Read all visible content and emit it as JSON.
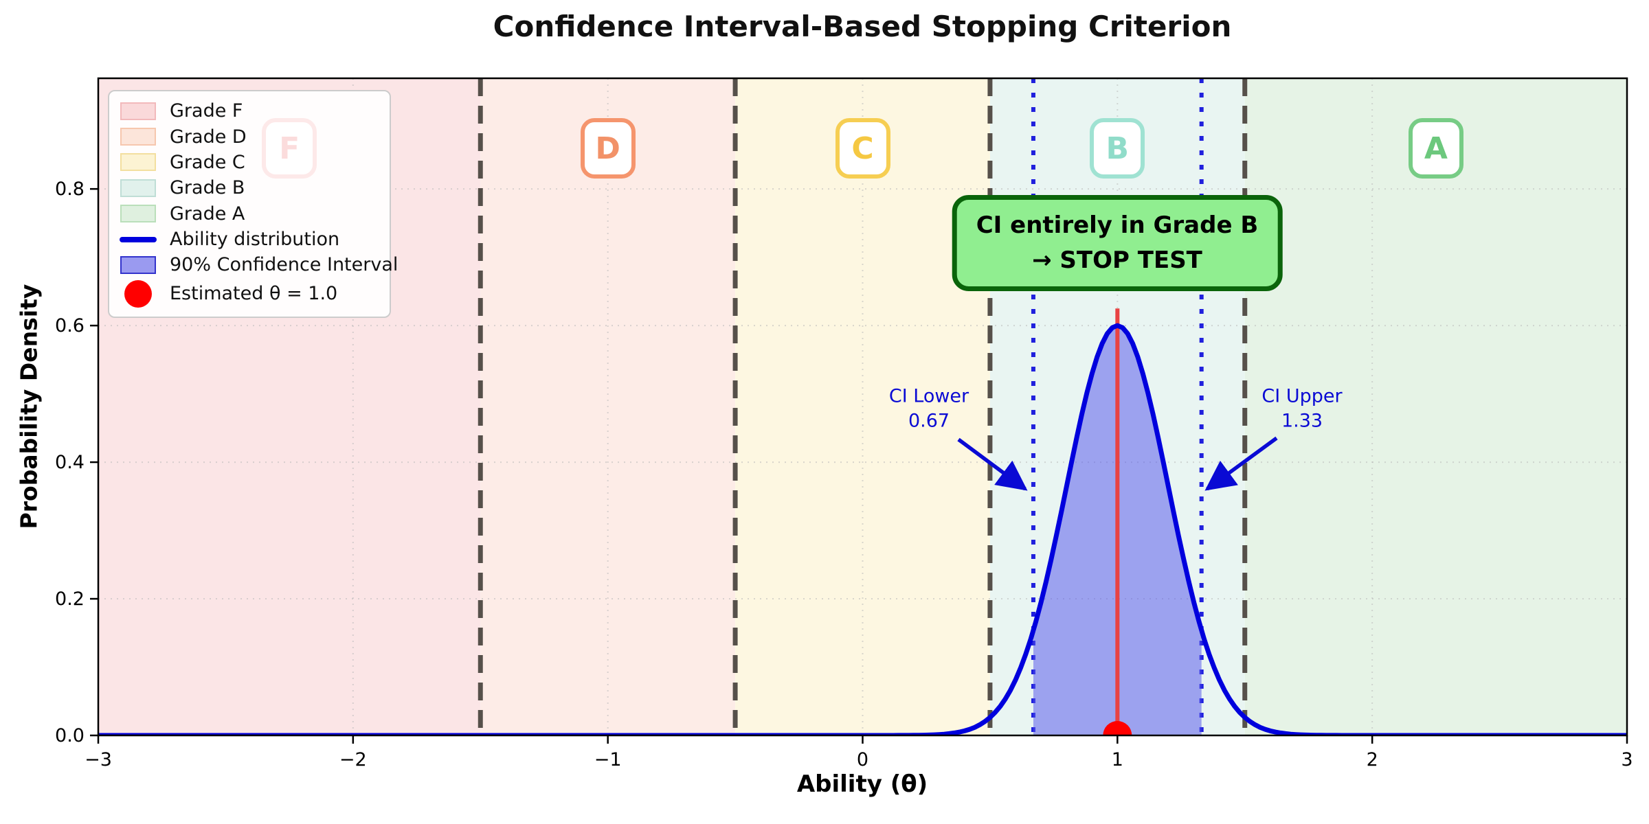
{
  "chart_data": {
    "type": "line",
    "title": "Confidence Interval-Based Stopping Criterion",
    "xlabel": "Ability (θ)",
    "ylabel": "Probability Density",
    "xlim": [
      -3,
      3
    ],
    "ylim": [
      0,
      0.962
    ],
    "x_ticks": [
      -3,
      -2,
      -1,
      0,
      1,
      2,
      3
    ],
    "x_tick_labels": [
      "−3",
      "−2",
      "−1",
      "0",
      "1",
      "2",
      "3"
    ],
    "y_ticks": [
      0.0,
      0.2,
      0.4,
      0.6,
      0.8
    ],
    "y_tick_labels": [
      "0.0",
      "0.2",
      "0.4",
      "0.6",
      "0.8"
    ],
    "grid": true,
    "grid_color": "rgba(185,185,185,0.55)",
    "distribution": {
      "name": "Ability distribution",
      "shape": "gaussian",
      "mean": 1.0,
      "sigma": 0.2,
      "peak_density": 0.6,
      "color": "#0000dd",
      "key_points": [
        {
          "x": 0.67,
          "y": 0.154
        },
        {
          "x": 1.0,
          "y": 0.6
        },
        {
          "x": 1.33,
          "y": 0.154
        }
      ]
    },
    "grade_regions": [
      {
        "grade": "F",
        "x_from": -3.0,
        "x_to": -1.5,
        "fill": "#fbe5e6",
        "badge_letter": "F",
        "badge_x": -2.25,
        "badge_color": "#fbdcdc",
        "badge_border": "#fde9e9"
      },
      {
        "grade": "D",
        "x_from": -1.5,
        "x_to": -0.5,
        "fill": "#fdece7",
        "badge_letter": "D",
        "badge_x": -1.0,
        "badge_color": "#f29268",
        "badge_border": "#f5956d"
      },
      {
        "grade": "C",
        "x_from": -0.5,
        "x_to": 0.5,
        "fill": "#fdf7e1",
        "badge_letter": "C",
        "badge_x": 0.0,
        "badge_color": "#f5c842",
        "badge_border": "#f6ce52"
      },
      {
        "grade": "B",
        "x_from": 0.5,
        "x_to": 1.5,
        "fill": "#e9f5f2",
        "badge_letter": "B",
        "badge_x": 1.0,
        "badge_color": "#90dcc9",
        "badge_border": "#9fe2d2"
      },
      {
        "grade": "A",
        "x_from": 1.5,
        "x_to": 3.0,
        "fill": "#e6f3e6",
        "badge_letter": "A",
        "badge_x": 2.25,
        "badge_color": "#6cc87d",
        "badge_border": "#77cc85"
      }
    ],
    "grade_boundaries": {
      "values": [
        -1.5,
        -0.5,
        0.5,
        1.5
      ],
      "color": "#56504a",
      "style": "dashed"
    },
    "confidence_interval": {
      "level": "90%",
      "lower": 0.67,
      "upper": 1.33,
      "fill": "rgba(80,80,235,0.5)",
      "line_color": "#2020dd",
      "label_color": "#0a0ad4",
      "lower_label": {
        "line1": "CI Lower",
        "line2": "0.67"
      },
      "upper_label": {
        "line1": "CI Upper",
        "line2": "1.33"
      }
    },
    "estimate": {
      "theta": 1.0,
      "marker_color": "#ff0000",
      "line_color": "#e84343",
      "line_top": 0.625
    },
    "annotation": {
      "line1": "CI entirely in Grade B",
      "line2": "→ STOP TEST",
      "fill": "#90ee90",
      "border": "#0a640a"
    },
    "legend_items": [
      {
        "label": "Grade F",
        "swatch": "patch",
        "fill": "#fad9da",
        "border": "#f2b9bb"
      },
      {
        "label": "Grade D",
        "swatch": "patch",
        "fill": "#fce5da",
        "border": "#f6c7ae"
      },
      {
        "label": "Grade C",
        "swatch": "patch",
        "fill": "#fcf3d3",
        "border": "#f3df9f"
      },
      {
        "label": "Grade B",
        "swatch": "patch",
        "fill": "#e1f1ec",
        "border": "#bfded6"
      },
      {
        "label": "Grade A",
        "swatch": "patch",
        "fill": "#dff0df",
        "border": "#badfba"
      },
      {
        "label": "Ability distribution",
        "swatch": "line",
        "fill": "#0000dd",
        "border": "#0000dd"
      },
      {
        "label": "90% Confidence Interval",
        "swatch": "patch",
        "fill": "#9a9af0",
        "border": "#3333cc"
      },
      {
        "label": "Estimated θ = 1.0",
        "swatch": "marker",
        "fill": "#ff0000",
        "border": "#ff0000"
      }
    ]
  }
}
